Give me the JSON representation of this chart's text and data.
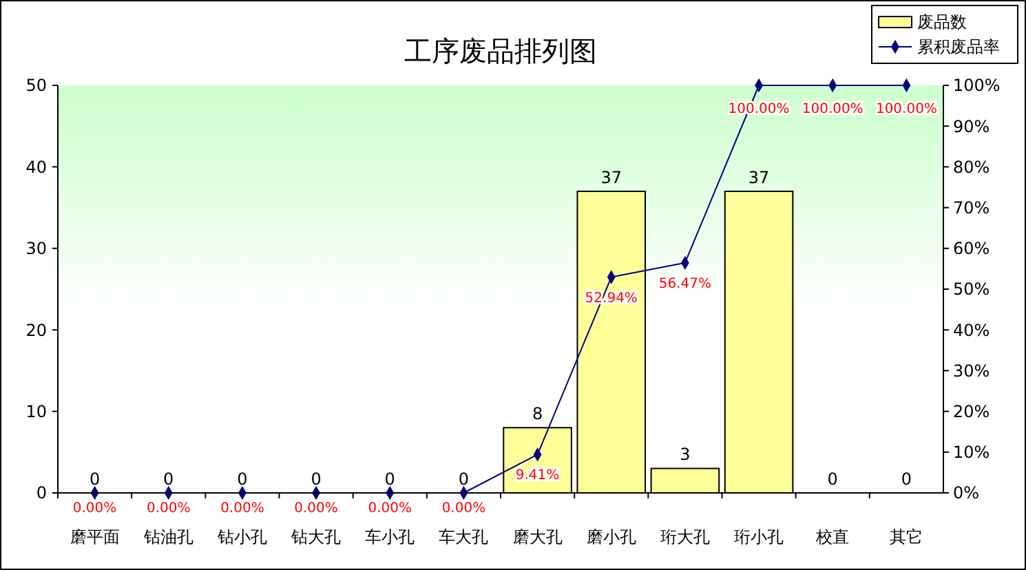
{
  "chart_data": {
    "type": "bar",
    "title": "工序废品排列图",
    "categories": [
      "磨平面",
      "钻油孔",
      "钻小孔",
      "钻大孔",
      "车小孔",
      "车大孔",
      "磨大孔",
      "磨小孔",
      "珩大孔",
      "珩小孔",
      "校直",
      "其它"
    ],
    "series": [
      {
        "name": "废品数",
        "color": "#ffff99",
        "values": [
          0,
          0,
          0,
          0,
          0,
          0,
          8,
          37,
          3,
          37,
          0,
          0
        ]
      },
      {
        "name": "累积废品率",
        "type": "line",
        "axis": "y2",
        "color": "#000080",
        "marker": "diamond",
        "values": [
          0,
          0,
          0,
          0,
          0,
          0,
          9.41,
          52.94,
          56.47,
          100,
          100,
          100
        ],
        "value_labels": [
          "0.00%",
          "0.00%",
          "0.00%",
          "0.00%",
          "0.00%",
          "0.00%",
          "9.41%",
          "52.94%",
          "56.47%",
          "100.00%",
          "100.00%",
          "100.00%"
        ]
      }
    ],
    "data_labels": true,
    "ylim": [
      0,
      50
    ],
    "yticks": [
      0,
      10,
      20,
      30,
      40,
      50
    ],
    "y2lim": [
      0,
      100
    ],
    "y2ticks": [
      {
        "value": 0,
        "label": "0%"
      },
      {
        "value": 10,
        "label": "10%"
      },
      {
        "value": 20,
        "label": "20%"
      },
      {
        "value": 30,
        "label": "30%"
      },
      {
        "value": 40,
        "label": "40%"
      },
      {
        "value": 50,
        "label": "50%"
      },
      {
        "value": 60,
        "label": "60%"
      },
      {
        "value": 70,
        "label": "70%"
      },
      {
        "value": 80,
        "label": "80%"
      },
      {
        "value": 90,
        "label": "90%"
      },
      {
        "value": 100,
        "label": "100%"
      }
    ],
    "grid": false,
    "legend": "top right"
  }
}
